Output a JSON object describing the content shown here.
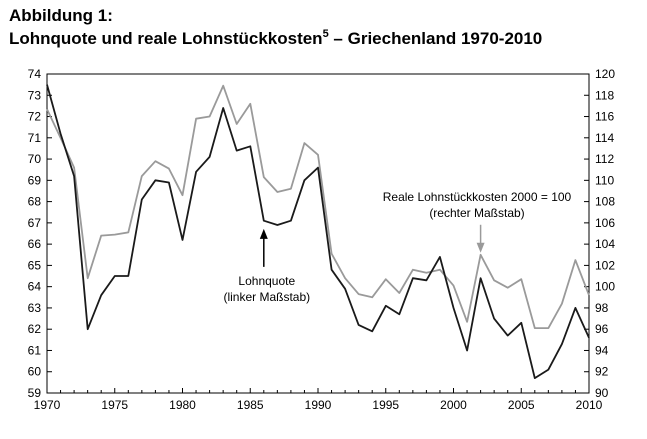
{
  "heading": {
    "figure_label": "Abbildung 1:",
    "title_main": "Lohnquote und reale Lohnstückkosten",
    "title_sup": "5",
    "title_tail": " – Griechenland 1970-2010"
  },
  "colors": {
    "lohnquote": "#1a1a1a",
    "lohnstueck": "#9a9a9a",
    "axis": "#000000"
  },
  "chart_data": {
    "type": "line",
    "x": [
      1970,
      1971,
      1972,
      1973,
      1974,
      1975,
      1976,
      1977,
      1978,
      1979,
      1980,
      1981,
      1982,
      1983,
      1984,
      1985,
      1986,
      1987,
      1988,
      1989,
      1990,
      1991,
      1992,
      1993,
      1994,
      1995,
      1996,
      1997,
      1998,
      1999,
      2000,
      2001,
      2002,
      2003,
      2004,
      2005,
      2006,
      2007,
      2008,
      2009,
      2010
    ],
    "xlim": [
      1970,
      2010
    ],
    "x_ticks": [
      1970,
      1975,
      1980,
      1985,
      1990,
      1995,
      2000,
      2005,
      2010
    ],
    "y_left_lim": [
      59,
      74
    ],
    "y_left_ticks": [
      59,
      60,
      61,
      62,
      63,
      64,
      65,
      66,
      67,
      68,
      69,
      70,
      71,
      72,
      73,
      74
    ],
    "y_right_lim": [
      90,
      120
    ],
    "y_right_ticks": [
      90,
      92,
      94,
      96,
      98,
      100,
      102,
      104,
      106,
      108,
      110,
      112,
      114,
      116,
      118,
      120
    ],
    "grid": false,
    "series": [
      {
        "name": "Lohnquote",
        "axis": "left",
        "color": "#1a1a1a",
        "values": [
          73.5,
          71.2,
          69.2,
          62.0,
          63.6,
          64.5,
          64.5,
          68.1,
          69.0,
          68.9,
          66.2,
          69.4,
          70.1,
          72.4,
          70.4,
          70.6,
          67.1,
          66.9,
          67.1,
          69.0,
          69.6,
          64.8,
          63.9,
          62.2,
          61.9,
          63.1,
          62.7,
          64.4,
          64.3,
          65.4,
          63.0,
          61.0,
          64.4,
          62.5,
          61.7,
          62.3,
          59.7,
          60.1,
          61.3,
          63.0,
          61.6
        ]
      },
      {
        "name": "Reale Lohnstückkosten 2000 = 100",
        "axis": "right",
        "color": "#9a9a9a",
        "values": [
          116.7,
          114.0,
          111.2,
          100.8,
          104.8,
          104.9,
          105.1,
          110.4,
          111.8,
          111.1,
          108.6,
          115.8,
          116.0,
          118.9,
          115.3,
          117.2,
          110.3,
          108.9,
          109.2,
          113.5,
          112.4,
          103.1,
          100.8,
          99.3,
          99.0,
          100.7,
          99.4,
          101.6,
          101.3,
          101.6,
          100.1,
          96.7,
          103.0,
          100.6,
          99.9,
          100.7,
          96.1,
          96.1,
          98.4,
          102.5,
          99.2
        ]
      }
    ],
    "annotations": [
      {
        "text_lines": [
          "Lohnquote",
          "(linker Maßstab)"
        ],
        "x": 1986,
        "y": 67.0,
        "axis": "left"
      },
      {
        "text_lines": [
          "Reale Lohnstückkosten 2000 = 100",
          "(rechter Maßstab)"
        ],
        "x": 2002,
        "y": 103.0,
        "axis": "right"
      }
    ]
  }
}
